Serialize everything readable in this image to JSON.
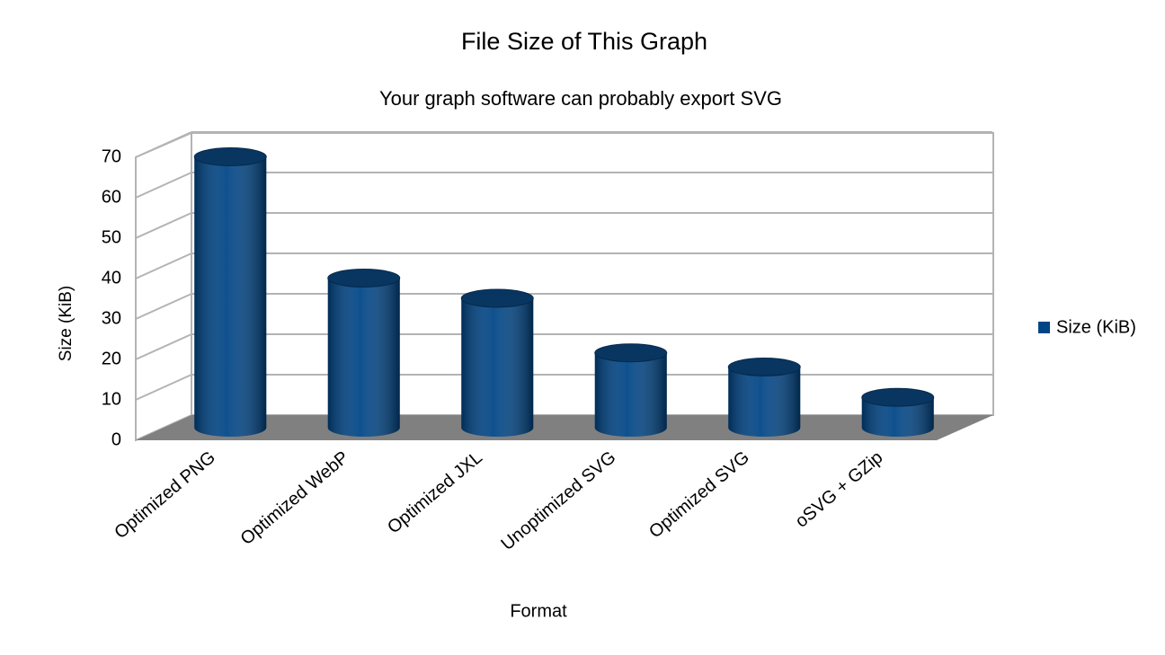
{
  "chart_data": {
    "type": "bar",
    "title": "File Size of This Graph",
    "subtitle": "Your graph software can probably export SVG",
    "x_label": "Format",
    "y_label": "Size (KiB)",
    "categories": [
      "Optimized PNG",
      "Optimized WebP",
      "Optimized JXL",
      "Unoptimized SVG",
      "Optimized SVG",
      "oSVG + GZip"
    ],
    "series": [
      {
        "name": "Size (KiB)",
        "color": "#004586",
        "values": [
          67,
          37,
          32,
          18.5,
          15,
          7.5
        ]
      }
    ],
    "ylim": [
      0,
      70
    ],
    "yticks": [
      0,
      10,
      20,
      30,
      40,
      50,
      60,
      70
    ],
    "grid": true,
    "legend": "right"
  }
}
